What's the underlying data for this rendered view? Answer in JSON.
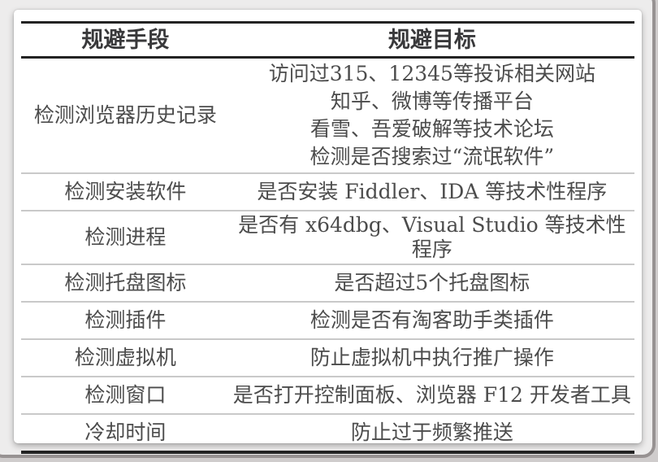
{
  "table": {
    "headers": {
      "method": "规避手段",
      "target": "规避目标"
    },
    "rows": [
      {
        "method": "检测浏览器历史记录",
        "targets": [
          "访问过315、12345等投诉相关网站",
          "知乎、微博等传播平台",
          "看雪、吾爱破解等技术论坛",
          "检测是否搜索过“流氓软件”"
        ]
      },
      {
        "method": "检测安装软件",
        "target": "是否安装 Fiddler、IDA 等技术性程序"
      },
      {
        "method": "检测进程",
        "target": "是否有 x64dbg、Visual Studio 等技术性程序"
      },
      {
        "method": "检测托盘图标",
        "target": "是否超过5个托盘图标"
      },
      {
        "method": "检测插件",
        "target": "检测是否有淘客助手类插件"
      },
      {
        "method": "检测虚拟机",
        "target": "防止虚拟机中执行推广操作"
      },
      {
        "method": "检测窗口",
        "target": "是否打开控制面板、浏览器 F12 开发者工具"
      },
      {
        "method": "冷却时间",
        "target": "防止过于频繁推送"
      }
    ],
    "colors": {
      "rule": "#232323",
      "divider": "#c9c9c9",
      "body_text": "#4c4c4c",
      "header_text": "#39393b",
      "card_bg": "#ffffff",
      "page_bg": "#edecec",
      "frame_border": "#979292"
    }
  }
}
